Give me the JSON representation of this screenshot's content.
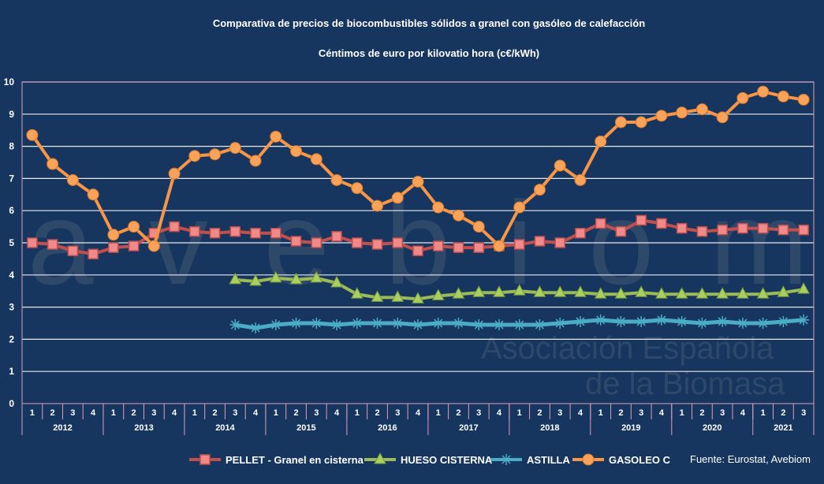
{
  "chart_data": {
    "type": "line",
    "title": "Comparativa de precios de biocombustibles sólidos a granel con gasóleo de calefacción",
    "subtitle": "Céntimos de euro por kilovatio hora (c€/kWh)",
    "ylim": [
      0,
      10
    ],
    "yticks": [
      "0",
      "1",
      "2",
      "3",
      "4",
      "5",
      "6",
      "7",
      "8",
      "9",
      "10"
    ],
    "years": [
      "2012",
      "2013",
      "2014",
      "2015",
      "2016",
      "2017",
      "2018",
      "2019",
      "2020",
      "2021"
    ],
    "quarters": [
      "1",
      "2",
      "3",
      "4",
      "1",
      "2",
      "3",
      "4",
      "1",
      "2",
      "3",
      "4",
      "1",
      "2",
      "3",
      "4",
      "1",
      "2",
      "3",
      "4",
      "1",
      "2",
      "3",
      "4",
      "1",
      "2",
      "3",
      "4",
      "1",
      "2",
      "3",
      "4",
      "1",
      "2",
      "3",
      "4",
      "1",
      "2",
      "3"
    ],
    "grid": true,
    "legend_position": "bottom",
    "series": [
      {
        "name": "PELLET - Granel en cisterna",
        "color": "#c0504d",
        "marker": "square",
        "start": 0,
        "values": [
          5.0,
          4.95,
          4.75,
          4.65,
          4.85,
          4.9,
          5.3,
          5.5,
          5.35,
          5.3,
          5.35,
          5.3,
          5.3,
          5.05,
          5.0,
          5.2,
          5.0,
          4.95,
          5.0,
          4.75,
          4.9,
          4.85,
          4.85,
          4.9,
          4.95,
          5.05,
          5.0,
          5.3,
          5.6,
          5.35,
          5.7,
          5.6,
          5.45,
          5.35,
          5.4,
          5.45,
          5.45,
          5.4,
          5.4
        ]
      },
      {
        "name": "HUESO CISTERNA",
        "color": "#9bbb59",
        "marker": "triangle",
        "start": 10,
        "values": [
          3.85,
          3.8,
          3.9,
          3.85,
          3.9,
          3.75,
          3.4,
          3.3,
          3.3,
          3.25,
          3.35,
          3.4,
          3.45,
          3.45,
          3.5,
          3.45,
          3.45,
          3.45,
          3.4,
          3.4,
          3.45,
          3.4,
          3.4,
          3.4,
          3.4,
          3.4,
          3.4,
          3.45,
          3.55
        ]
      },
      {
        "name": "ASTILLA",
        "color": "#4bacc6",
        "marker": "star",
        "start": 10,
        "values": [
          2.45,
          2.35,
          2.45,
          2.5,
          2.5,
          2.45,
          2.5,
          2.5,
          2.5,
          2.45,
          2.5,
          2.5,
          2.45,
          2.45,
          2.45,
          2.45,
          2.5,
          2.55,
          2.6,
          2.55,
          2.55,
          2.6,
          2.55,
          2.5,
          2.55,
          2.5,
          2.5,
          2.55,
          2.6
        ]
      },
      {
        "name": "GASOLEO C",
        "color": "#f79646",
        "marker": "circle",
        "start": 0,
        "values": [
          8.35,
          7.45,
          6.95,
          6.5,
          5.25,
          5.5,
          4.9,
          7.15,
          7.7,
          7.75,
          7.95,
          7.55,
          8.3,
          7.85,
          7.6,
          6.95,
          6.7,
          6.15,
          6.4,
          6.9,
          6.1,
          5.85,
          5.5,
          4.9,
          6.1,
          6.65,
          7.4,
          6.95,
          8.15,
          8.75,
          8.75,
          8.95,
          9.05,
          9.15,
          8.9,
          9.5,
          9.7,
          9.55,
          9.45
        ]
      }
    ],
    "source": "Fuente: Eurostat, Avebiom"
  },
  "watermark": {
    "logo": "avebiom",
    "line1": "Asociación Española",
    "line2": "de la Biomasa"
  }
}
